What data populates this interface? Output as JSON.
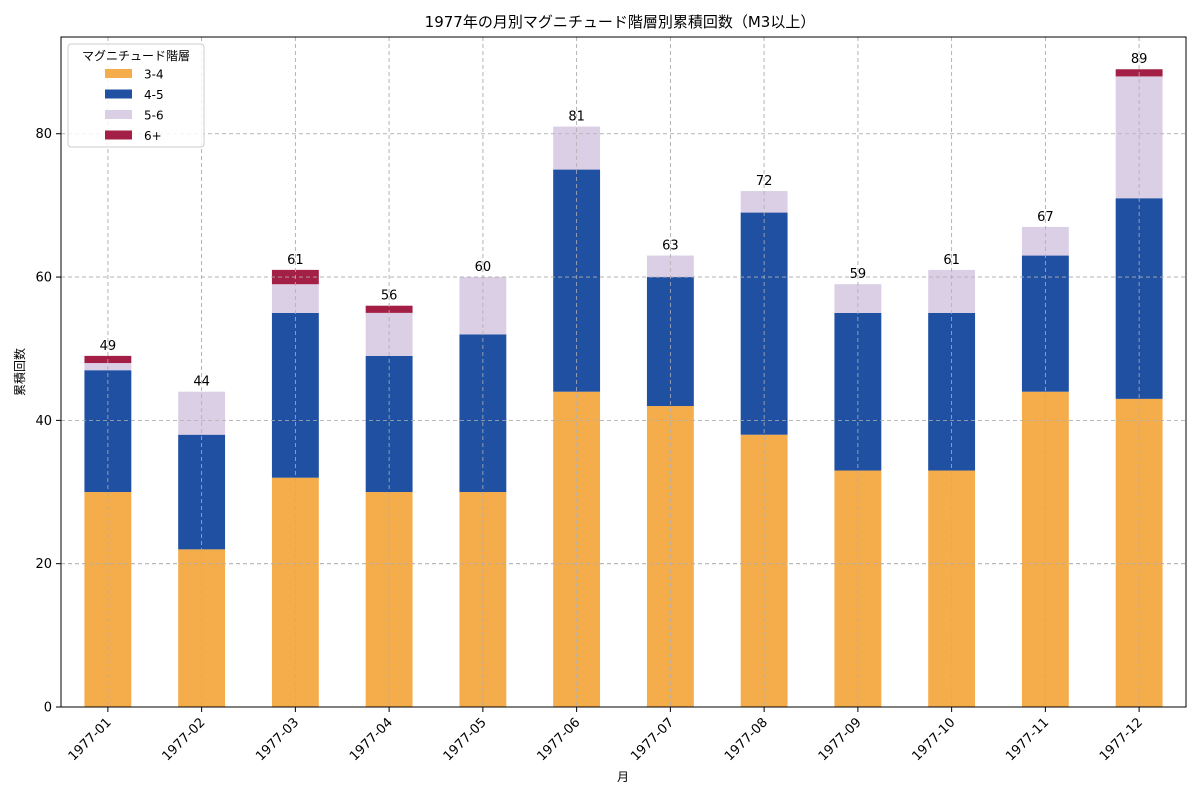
{
  "chart_data": {
    "type": "bar",
    "stacked": true,
    "title": "1977年の月別マグニチュード階層別累積回数（M3以上）",
    "xlabel": "月",
    "ylabel": "累積回数",
    "ylim": [
      0,
      93.5
    ],
    "yticks": [
      0,
      20,
      40,
      60,
      80
    ],
    "grid": true,
    "legend": {
      "title": "マグニチュード階層",
      "position": "top-left"
    },
    "categories": [
      "1977-01",
      "1977-02",
      "1977-03",
      "1977-04",
      "1977-05",
      "1977-06",
      "1977-07",
      "1977-08",
      "1977-09",
      "1977-10",
      "1977-11",
      "1977-12"
    ],
    "series": [
      {
        "name": "3-4",
        "color": "#f5ac4a",
        "values": [
          30,
          22,
          32,
          30,
          30,
          44,
          42,
          38,
          33,
          33,
          44,
          43
        ]
      },
      {
        "name": "4-5",
        "color": "#1f50a2",
        "values": [
          17,
          16,
          23,
          19,
          22,
          31,
          18,
          31,
          22,
          22,
          19,
          28
        ]
      },
      {
        "name": "5-6",
        "color": "#dacfe5",
        "values": [
          1,
          6,
          4,
          6,
          8,
          6,
          3,
          3,
          4,
          6,
          4,
          17
        ]
      },
      {
        "name": "6+",
        "color": "#a31f45",
        "values": [
          1,
          0,
          2,
          1,
          0,
          0,
          0,
          0,
          0,
          0,
          0,
          1
        ]
      }
    ],
    "totals": [
      49,
      44,
      61,
      56,
      60,
      81,
      63,
      72,
      59,
      61,
      67,
      89
    ]
  }
}
